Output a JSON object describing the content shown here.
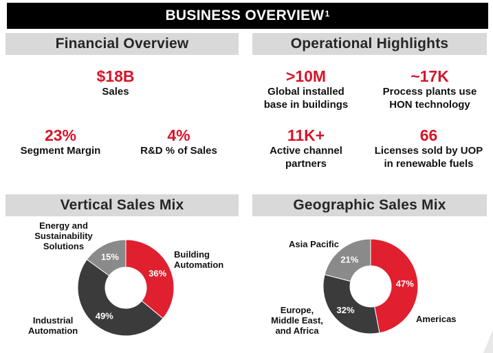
{
  "title": {
    "text": "BUSINESS OVERVIEW",
    "superscript": "1"
  },
  "financial": {
    "header": "Financial Overview",
    "sales": {
      "value": "$18B",
      "label": "Sales"
    },
    "margin": {
      "value": "23%",
      "label": "Segment Margin"
    },
    "rnd": {
      "value": "4%",
      "label": "R&D % of Sales"
    }
  },
  "operational": {
    "header": "Operational Highlights",
    "installed": {
      "value": ">10M",
      "line1": "Global installed",
      "line2": "base in buildings"
    },
    "plants": {
      "value": "~17K",
      "line1": "Process plants use",
      "line2": "HON technology"
    },
    "partners": {
      "value": "11K+",
      "line1": "Active channel",
      "line2": "partners"
    },
    "licenses": {
      "value": "66",
      "line1": "Licenses sold by UOP",
      "line2": "in renewable fuels"
    }
  },
  "vertical": {
    "header": "Vertical Sales Mix",
    "labels": {
      "building": [
        "Building",
        "Automation"
      ],
      "industrial": [
        "Industrial",
        "Automation"
      ],
      "energy": [
        "Energy and",
        "Sustainability",
        "Solutions"
      ]
    }
  },
  "geographic": {
    "header": "Geographic Sales Mix",
    "labels": {
      "americas": [
        "Americas"
      ],
      "europe": [
        "Europe,",
        "Middle East,",
        "and Africa"
      ],
      "asia": [
        "Asia Pacific"
      ]
    }
  },
  "chart_data": [
    {
      "type": "pie",
      "title": "Vertical Sales Mix",
      "categories": [
        "Building Automation",
        "Industrial Automation",
        "Energy and Sustainability Solutions"
      ],
      "values": [
        36,
        49,
        15
      ],
      "value_labels": [
        "36%",
        "49%",
        "15%"
      ],
      "colors": [
        "#e0202f",
        "#3b3b3b",
        "#8a8a8a"
      ],
      "donut": true
    },
    {
      "type": "pie",
      "title": "Geographic Sales Mix",
      "categories": [
        "Americas",
        "Europe, Middle East, and Africa",
        "Asia Pacific"
      ],
      "values": [
        47,
        32,
        21
      ],
      "value_labels": [
        "47%",
        "32%",
        "21%"
      ],
      "colors": [
        "#e0202f",
        "#3b3b3b",
        "#8a8a8a"
      ],
      "donut": true
    }
  ]
}
